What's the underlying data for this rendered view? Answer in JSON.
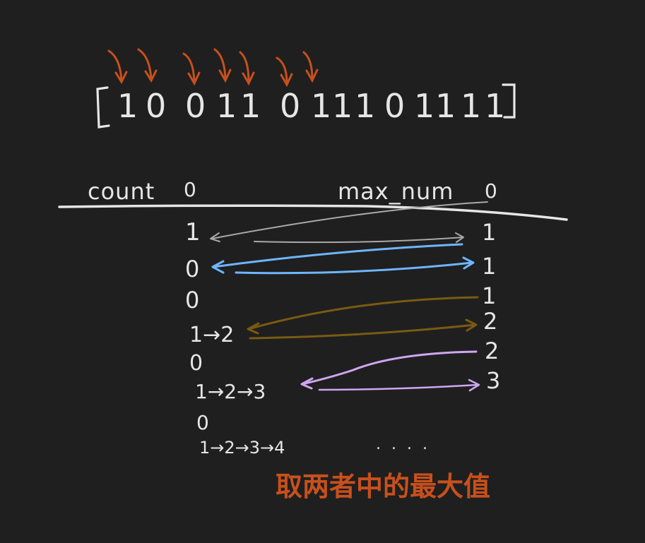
{
  "colors": {
    "background": "#1f1f1f",
    "ink": "#e6e6e6",
    "pointer_arrows": "#c8501c",
    "note": "#c8501c",
    "flow_gray": "#a9a9a9",
    "flow_blue": "#6eb6ff",
    "flow_brown": "#7a5a12",
    "flow_purple": "#cfa6f0"
  },
  "array": {
    "open_bracket": "[",
    "close_bracket": "]",
    "digits": [
      "1",
      "0",
      "0",
      "1",
      "1",
      "0",
      "1",
      "1",
      "1",
      "0",
      "1",
      "1",
      "1",
      "1"
    ]
  },
  "headers": {
    "count_label": "count",
    "count_initial": "0",
    "max_label": "max_num",
    "max_initial": "0"
  },
  "count_column": [
    "1",
    "0",
    "0",
    "1→2",
    "0",
    "1→2→3",
    "0",
    "1→2→3→4"
  ],
  "max_column": [
    "1",
    "1",
    "1",
    "2",
    "2",
    "3"
  ],
  "ellipsis": ". . . .",
  "note_text": "取两者中的最大值"
}
